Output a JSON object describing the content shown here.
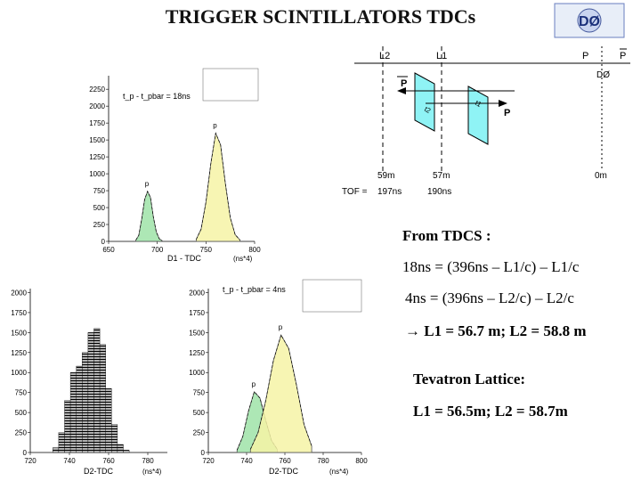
{
  "slide": {
    "title": "TRIGGER SCINTILLATORS TDCs",
    "logo_text": "DØ"
  },
  "diagram": {
    "labels": {
      "l2": "L2",
      "l1": "L1",
      "p_left": "P",
      "p_right": "P",
      "pbar_top": "P",
      "pbar_right": "P",
      "dzero": "DØ",
      "t2": "t2",
      "t1": "t1",
      "dist_l2": "59m",
      "dist_l1": "57m",
      "dist_0": "0m",
      "tof_label": "TOF =",
      "tof_l2": "197ns",
      "tof_l1": "190ns"
    }
  },
  "chart_data": [
    {
      "type": "area",
      "id": "d1",
      "xlabel": "D1 - TDC",
      "xunit": "(ns*4)",
      "annotation": "t_p - t_pbar = 18ns",
      "series_labels": {
        "pbar": "p",
        "p": "p"
      },
      "x_ticks": [
        650,
        700,
        750,
        800
      ],
      "y_ticks": [
        0,
        250,
        500,
        750,
        1000,
        1250,
        1500,
        1750,
        2000,
        2250
      ],
      "xlim": [
        650,
        800
      ],
      "ylim": [
        0,
        2450
      ],
      "series": [
        {
          "name": "pbar",
          "x": [
            678,
            681,
            684,
            687,
            690,
            693,
            696,
            699,
            702,
            705
          ],
          "values": [
            20,
            90,
            330,
            620,
            740,
            650,
            360,
            140,
            40,
            10
          ]
        },
        {
          "name": "p",
          "x": [
            740,
            745,
            750,
            755,
            760,
            765,
            770,
            775,
            780,
            785
          ],
          "values": [
            30,
            180,
            580,
            1150,
            1600,
            1430,
            850,
            350,
            100,
            20
          ]
        }
      ]
    },
    {
      "type": "bar",
      "id": "d2-left",
      "x_ticks": [
        720,
        740,
        760,
        780
      ],
      "y_ticks": [
        0,
        250,
        500,
        750,
        1000,
        1250,
        1500,
        1750,
        2000
      ],
      "xlabel": "D2-TDC",
      "xunit": "(ns*4)",
      "xlim": [
        720,
        790
      ],
      "ylim": [
        0,
        2050
      ],
      "x": [
        733,
        736,
        739,
        742,
        745,
        748,
        751,
        754,
        757,
        760,
        763,
        766,
        769
      ],
      "values": [
        60,
        250,
        650,
        1000,
        1080,
        1250,
        1500,
        1550,
        1350,
        800,
        350,
        100,
        30
      ]
    },
    {
      "type": "area",
      "id": "d2-right",
      "xlabel": "D2-TDC",
      "xunit": "(ns*4)",
      "annotation": "t_p - t_pbar = 4ns",
      "series_labels": {
        "pbar": "p",
        "p": "p"
      },
      "x_ticks": [
        720,
        740,
        760,
        780,
        800
      ],
      "y_ticks": [
        0,
        250,
        500,
        750,
        1000,
        1250,
        1500,
        1750,
        2000
      ],
      "xlim": [
        720,
        800
      ],
      "ylim": [
        0,
        2050
      ],
      "series": [
        {
          "name": "pbar",
          "x": [
            735,
            738,
            741,
            744,
            747,
            750,
            753,
            756
          ],
          "values": [
            30,
            200,
            520,
            760,
            680,
            400,
            150,
            40
          ]
        },
        {
          "name": "p",
          "x": [
            742,
            746,
            750,
            754,
            758,
            762,
            766,
            770,
            774
          ],
          "values": [
            40,
            250,
            650,
            1150,
            1470,
            1300,
            850,
            350,
            80
          ]
        }
      ]
    }
  ],
  "text_panel": {
    "from_tdcs": "From TDCS :",
    "eq1": "18ns = (396ns – L1/c) – L1/c",
    "eq2": "4ns = (396ns – L2/c) – L2/c",
    "result": "L1 = 56.7 m; L2 = 58.8 m",
    "lattice_title": "Tevatron Lattice:",
    "lattice_values": "L1 = 56.5m; L2 = 58.7m"
  },
  "colors": {
    "pbar_fill": "#9fe3a8",
    "p_fill": "#f6f3a6",
    "title_color": "#111111",
    "scint_fill": "#8ff3f5"
  }
}
